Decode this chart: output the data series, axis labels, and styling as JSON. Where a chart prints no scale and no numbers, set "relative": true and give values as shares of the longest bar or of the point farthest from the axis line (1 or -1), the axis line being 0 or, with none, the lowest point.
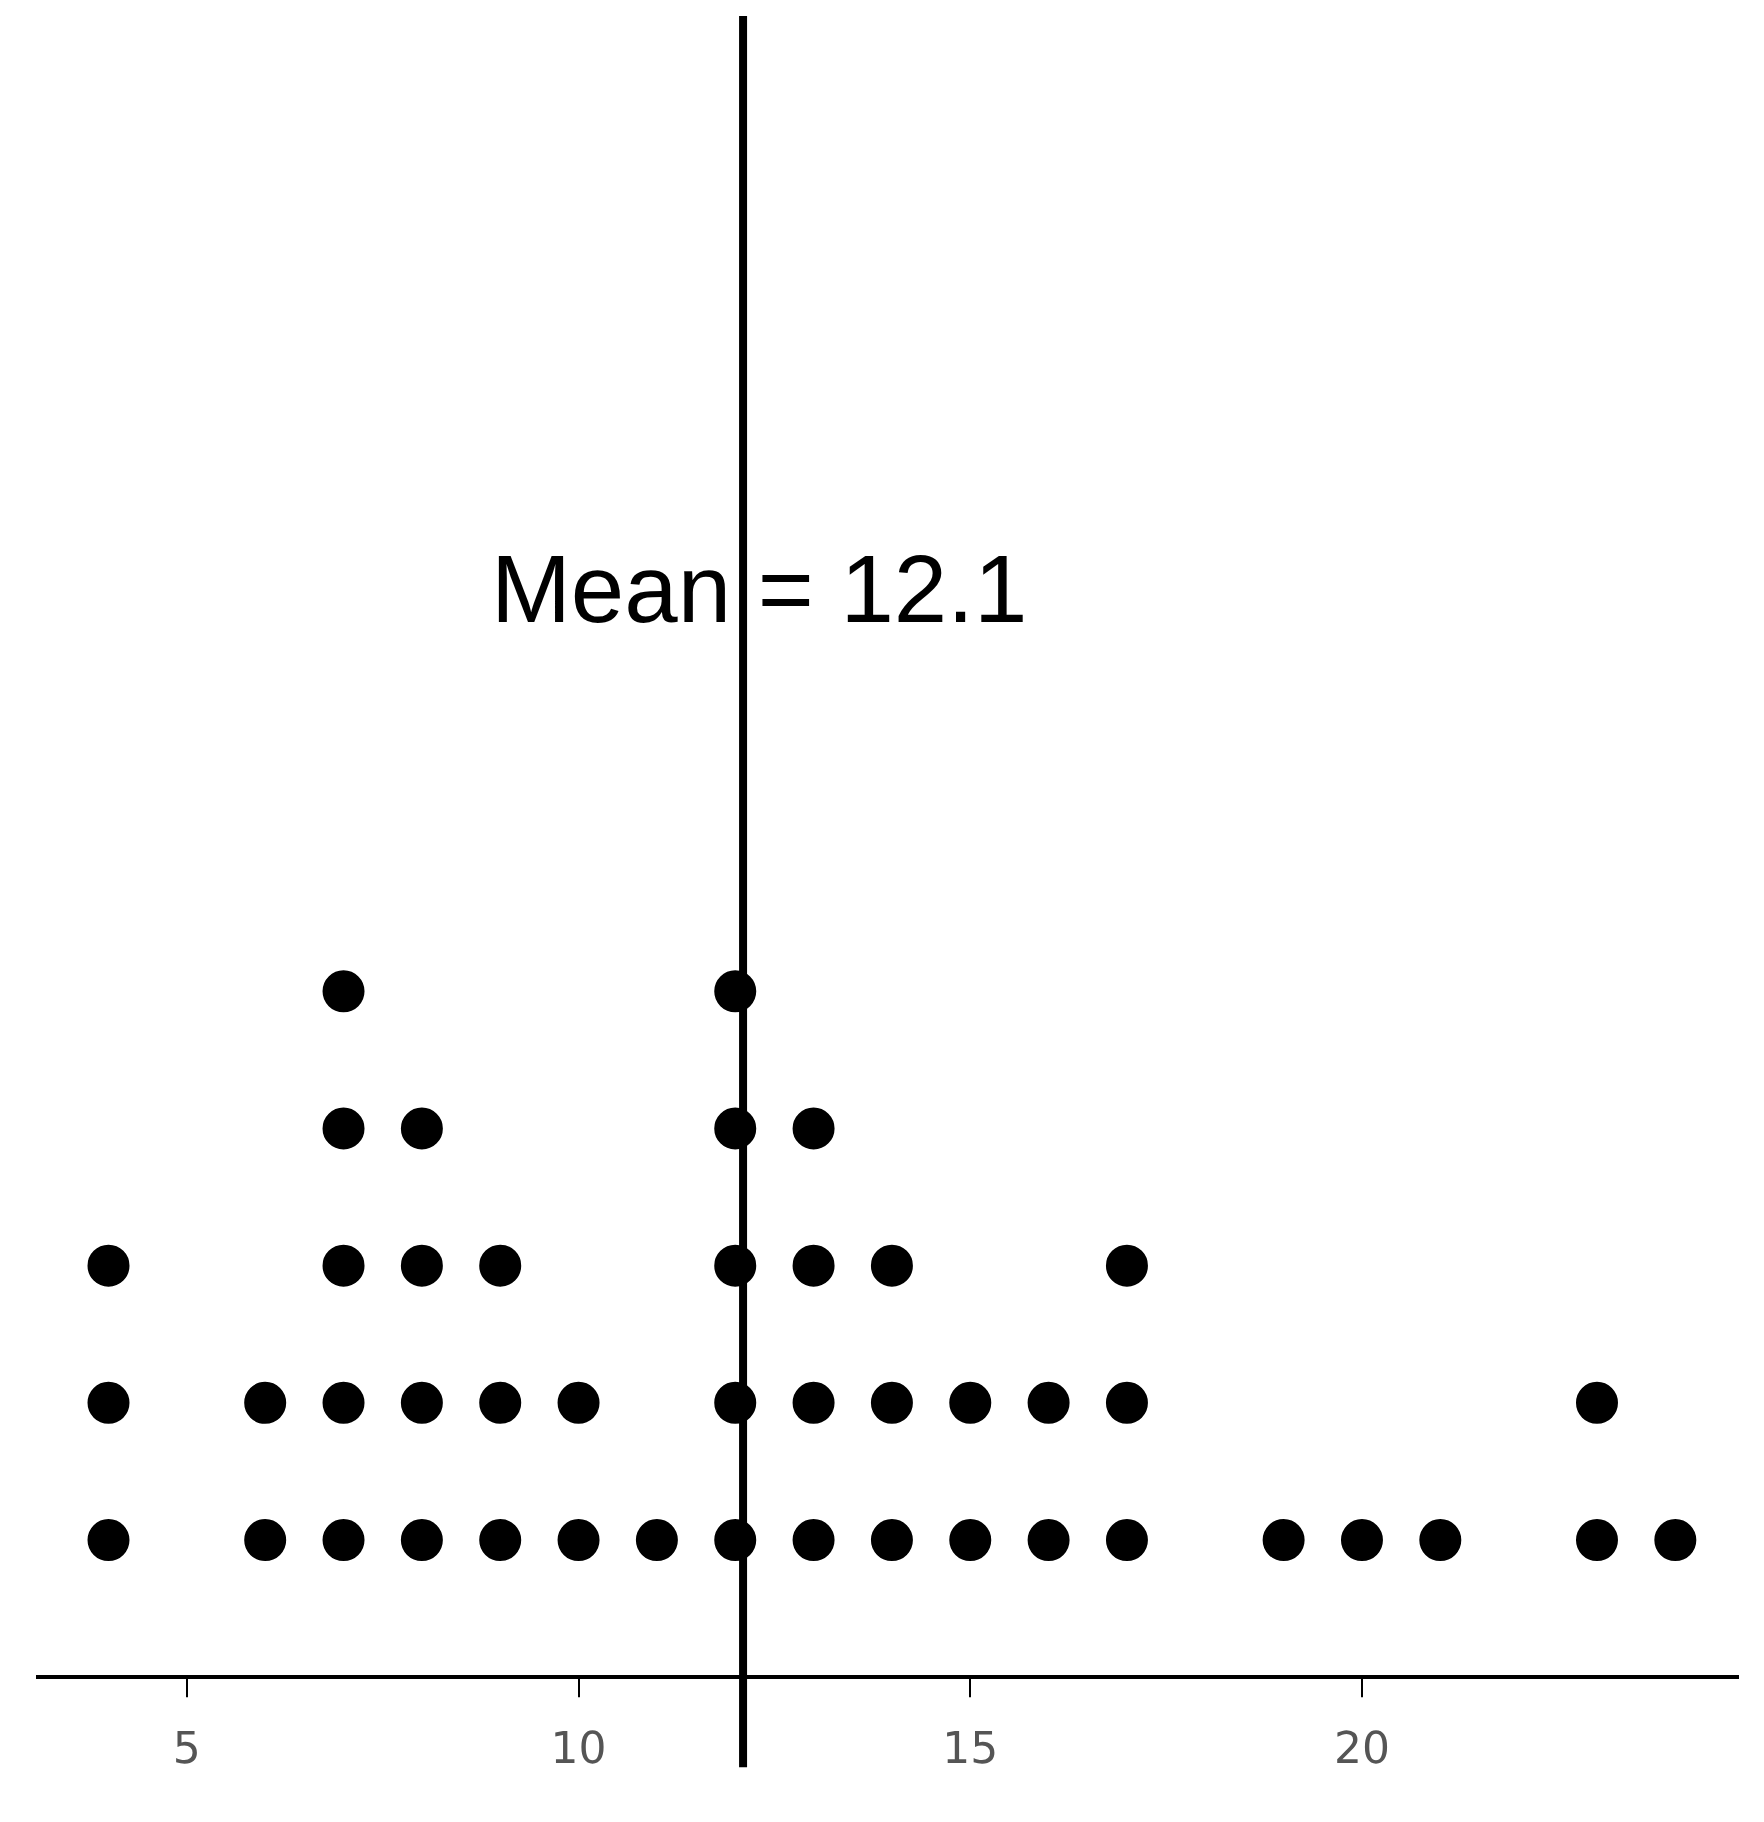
{
  "chart_data": {
    "type": "scatter",
    "relative": true,
    "marker": "circle",
    "xlim": [
      3.1,
      24.8
    ],
    "xticks": [
      5,
      10,
      15,
      20
    ],
    "series": [
      {
        "color": "#000000",
        "x": [
          4,
          4,
          4,
          6,
          6,
          7,
          7,
          7,
          7,
          7,
          8,
          8,
          8,
          8,
          9,
          9,
          9,
          10,
          10,
          11,
          12,
          12,
          12,
          12,
          12,
          13,
          13,
          13,
          13,
          14,
          14,
          14,
          15,
          15,
          16,
          16,
          17,
          17,
          17,
          19,
          20,
          21,
          23,
          23,
          24
        ],
        "values": [
          0.2,
          0.4,
          0.6,
          0.2,
          0.4,
          0.2,
          0.4,
          0.6,
          0.8,
          1.0,
          0.2,
          0.4,
          0.6,
          0.8,
          0.2,
          0.4,
          0.6,
          0.2,
          0.4,
          0.2,
          0.2,
          0.4,
          0.6,
          0.8,
          1.0,
          0.2,
          0.4,
          0.6,
          0.8,
          0.2,
          0.4,
          0.6,
          0.2,
          0.4,
          0.2,
          0.4,
          0.2,
          0.4,
          0.6,
          0.2,
          0.2,
          0.2,
          0.2,
          0.4,
          0.2
        ]
      }
    ],
    "ref_lines": [
      {
        "axis": "x",
        "value": 12.1,
        "label": "Mean = 12.1"
      }
    ]
  }
}
